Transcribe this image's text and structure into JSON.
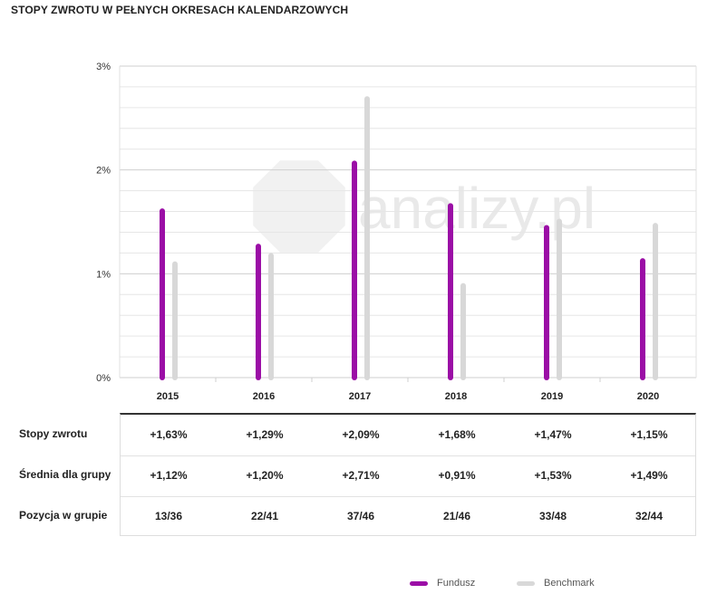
{
  "title": "STOPY ZWROTU W PEŁNYCH OKRESACH KALENDARZOWYCH",
  "watermark": "analizy.pl",
  "colors": {
    "fund": "#9b0ea6",
    "benchmark": "#d8d8d8"
  },
  "chart_data": {
    "type": "bar",
    "categories": [
      "2015",
      "2016",
      "2017",
      "2018",
      "2019",
      "2020"
    ],
    "series": [
      {
        "name": "Fundusz",
        "values": [
          1.63,
          1.29,
          2.09,
          1.68,
          1.47,
          1.15
        ]
      },
      {
        "name": "Benchmark",
        "values": [
          1.12,
          1.2,
          2.71,
          0.91,
          1.53,
          1.49
        ]
      }
    ],
    "yticks": [
      "0%",
      "1%",
      "2%",
      "3%"
    ],
    "ylim": [
      0,
      3
    ],
    "grid": true,
    "legend_position": "bottom-right"
  },
  "table": {
    "rows": [
      {
        "label": "Stopy zwrotu",
        "values": [
          "+1,63%",
          "+1,29%",
          "+2,09%",
          "+1,68%",
          "+1,47%",
          "+1,15%"
        ]
      },
      {
        "label": "Średnia dla grupy",
        "values": [
          "+1,12%",
          "+1,20%",
          "+2,71%",
          "+0,91%",
          "+1,53%",
          "+1,49%"
        ]
      },
      {
        "label": "Pozycja w grupie",
        "values": [
          "13/36",
          "22/41",
          "37/46",
          "21/46",
          "33/48",
          "32/44"
        ]
      }
    ]
  },
  "legend": {
    "fund": "Fundusz",
    "benchmark": "Benchmark"
  }
}
